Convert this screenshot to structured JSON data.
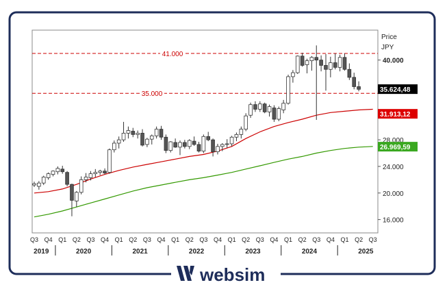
{
  "chart_data": {
    "type": "candlestick",
    "title": "",
    "y_axis_title": "Price",
    "y_axis_unit": "JPY",
    "ylim": [
      14000,
      44500
    ],
    "y_ticks": [
      {
        "value": 16000,
        "label": "16.000"
      },
      {
        "value": 20000,
        "label": "20.000"
      },
      {
        "value": 24000,
        "label": "24.000"
      },
      {
        "value": 28000,
        "label": "28.000"
      },
      {
        "value": 40000,
        "label": "40.000"
      }
    ],
    "x_quarter_labels": [
      "Q3",
      "Q4",
      "Q1",
      "Q2",
      "Q3",
      "Q4",
      "Q1",
      "Q2",
      "Q3",
      "Q4",
      "Q1",
      "Q2",
      "Q3",
      "Q4",
      "Q1",
      "Q2",
      "Q3",
      "Q4",
      "Q1",
      "Q2",
      "Q3",
      "Q4",
      "Q1",
      "Q2",
      "Q3"
    ],
    "x_year_labels": [
      {
        "label": "2019",
        "quarter_index": 0.5
      },
      {
        "label": "2020",
        "quarter_index": 3.5
      },
      {
        "label": "2021",
        "quarter_index": 7.5
      },
      {
        "label": "2022",
        "quarter_index": 11.5
      },
      {
        "label": "2023",
        "quarter_index": 15.5
      },
      {
        "label": "2024",
        "quarter_index": 19.5
      },
      {
        "label": "2025",
        "quarter_index": 23.5
      }
    ],
    "horizontal_lines": [
      {
        "value": 41000,
        "label": "41.000",
        "color": "#cc0000"
      },
      {
        "value": 35000,
        "label": "35.000",
        "color": "#cc0000"
      }
    ],
    "price_badges": [
      {
        "value": 35624.48,
        "label": "35.624,48",
        "bg": "#000000",
        "fg": "#ffffff"
      },
      {
        "value": 31913.12,
        "label": "31.913,12",
        "bg": "#dd0000",
        "fg": "#ffffff"
      },
      {
        "value": 26969.59,
        "label": "26.969,59",
        "bg": "#3aa820",
        "fg": "#ffffff"
      }
    ],
    "series": [
      {
        "kind": "ohlc",
        "x_start_quarter": 0,
        "candles_per_quarter": 3,
        "values": [
          [
            21200,
            21700,
            20900,
            21400
          ],
          [
            21000,
            21800,
            20500,
            21500
          ],
          [
            21500,
            22600,
            21200,
            22400
          ],
          [
            22300,
            23100,
            22000,
            22900
          ],
          [
            22800,
            23400,
            22500,
            23300
          ],
          [
            23200,
            24000,
            22800,
            23700
          ],
          [
            23600,
            24100,
            22900,
            23200
          ],
          [
            23100,
            23300,
            21000,
            21300
          ],
          [
            21300,
            21400,
            16500,
            18900
          ],
          [
            18800,
            20300,
            17900,
            20100
          ],
          [
            20100,
            22500,
            19800,
            22000
          ],
          [
            22000,
            23000,
            21600,
            22400
          ],
          [
            22300,
            23300,
            21900,
            22900
          ],
          [
            22900,
            23600,
            22400,
            23100
          ],
          [
            23100,
            23500,
            22700,
            23300
          ],
          [
            23300,
            23700,
            22800,
            23000
          ],
          [
            23100,
            26700,
            22900,
            26500
          ],
          [
            26500,
            27900,
            26100,
            27500
          ],
          [
            27500,
            28500,
            26700,
            28000
          ],
          [
            28000,
            30700,
            27700,
            29000
          ],
          [
            29000,
            30000,
            28200,
            29400
          ],
          [
            29300,
            29800,
            28400,
            28800
          ],
          [
            28800,
            29400,
            28200,
            29000
          ],
          [
            29000,
            29600,
            27000,
            27200
          ],
          [
            27300,
            28300,
            26900,
            28100
          ],
          [
            28100,
            28800,
            27300,
            28600
          ],
          [
            28600,
            30000,
            28200,
            29600
          ],
          [
            29600,
            30100,
            28000,
            28400
          ],
          [
            28400,
            28800,
            26000,
            26400
          ],
          [
            26400,
            27800,
            26100,
            27700
          ],
          [
            27600,
            28200,
            26800,
            26900
          ],
          [
            26900,
            27900,
            25700,
            27600
          ],
          [
            27600,
            28000,
            26700,
            27000
          ],
          [
            27000,
            28100,
            26600,
            27900
          ],
          [
            27800,
            28500,
            27100,
            27300
          ],
          [
            27300,
            27700,
            26100,
            26300
          ],
          [
            26300,
            28800,
            26000,
            28500
          ],
          [
            28500,
            29200,
            27800,
            28000
          ],
          [
            28000,
            28200,
            25500,
            26200
          ],
          [
            26200,
            27400,
            25800,
            27000
          ],
          [
            27000,
            27500,
            26300,
            27300
          ],
          [
            27300,
            28100,
            26800,
            27400
          ],
          [
            27400,
            28600,
            27000,
            28400
          ],
          [
            28400,
            29100,
            27800,
            28800
          ],
          [
            28800,
            30000,
            28200,
            29600
          ],
          [
            29600,
            32000,
            29300,
            31600
          ],
          [
            31700,
            33600,
            31300,
            33300
          ],
          [
            33300,
            33800,
            32200,
            32600
          ],
          [
            32600,
            33800,
            32200,
            33400
          ],
          [
            33400,
            33600,
            32000,
            32200
          ],
          [
            32200,
            33300,
            31500,
            33000
          ],
          [
            32800,
            33200,
            30700,
            31100
          ],
          [
            31100,
            33000,
            30800,
            32700
          ],
          [
            32500,
            34000,
            32000,
            33500
          ],
          [
            33500,
            37800,
            33300,
            37500
          ],
          [
            37500,
            38500,
            36600,
            38100
          ],
          [
            38100,
            40700,
            37900,
            40600
          ],
          [
            40600,
            41100,
            39000,
            39200
          ],
          [
            39300,
            40200,
            38000,
            39900
          ],
          [
            39900,
            40600,
            38400,
            40400
          ],
          [
            40400,
            42200,
            31000,
            40000
          ],
          [
            40000,
            40700,
            38300,
            39200
          ],
          [
            39200,
            40900,
            35400,
            38600
          ],
          [
            38600,
            40500,
            37400,
            39600
          ],
          [
            39600,
            41000,
            38600,
            38900
          ],
          [
            38900,
            40800,
            38300,
            40400
          ],
          [
            40400,
            41000,
            38400,
            38600
          ],
          [
            38600,
            39500,
            37000,
            37400
          ],
          [
            37400,
            38100,
            35600,
            36000
          ],
          [
            36000,
            36800,
            35300,
            35600
          ]
        ]
      },
      {
        "name": "",
        "kind": "line",
        "color": "#cc0000",
        "points": [
          [
            0,
            20000
          ],
          [
            1,
            20200
          ],
          [
            2,
            20600
          ],
          [
            3,
            21300
          ],
          [
            4,
            22100
          ],
          [
            5,
            22800
          ],
          [
            6,
            23400
          ],
          [
            7,
            23900
          ],
          [
            8,
            24300
          ],
          [
            9,
            24700
          ],
          [
            10,
            25100
          ],
          [
            11,
            25500
          ],
          [
            12,
            25800
          ],
          [
            13,
            26300
          ],
          [
            14,
            27000
          ],
          [
            15,
            28200
          ],
          [
            16,
            29200
          ],
          [
            17,
            30000
          ],
          [
            18,
            30600
          ],
          [
            19,
            31100
          ],
          [
            20,
            31700
          ],
          [
            21,
            32100
          ],
          [
            22,
            32300
          ],
          [
            23,
            32500
          ],
          [
            24,
            32600
          ]
        ]
      },
      {
        "name": "",
        "kind": "line",
        "color": "#339900",
        "points": [
          [
            0,
            16400
          ],
          [
            1,
            16800
          ],
          [
            2,
            17300
          ],
          [
            3,
            17900
          ],
          [
            4,
            18500
          ],
          [
            5,
            19100
          ],
          [
            6,
            19700
          ],
          [
            7,
            20300
          ],
          [
            8,
            20800
          ],
          [
            9,
            21200
          ],
          [
            10,
            21600
          ],
          [
            11,
            22000
          ],
          [
            12,
            22300
          ],
          [
            13,
            22700
          ],
          [
            14,
            23100
          ],
          [
            15,
            23600
          ],
          [
            16,
            24100
          ],
          [
            17,
            24600
          ],
          [
            18,
            25100
          ],
          [
            19,
            25500
          ],
          [
            20,
            26000
          ],
          [
            21,
            26400
          ],
          [
            22,
            26700
          ],
          [
            23,
            26900
          ],
          [
            24,
            27000
          ]
        ]
      }
    ]
  },
  "brand": {
    "name": "websim",
    "color": "#1e2d5a"
  }
}
